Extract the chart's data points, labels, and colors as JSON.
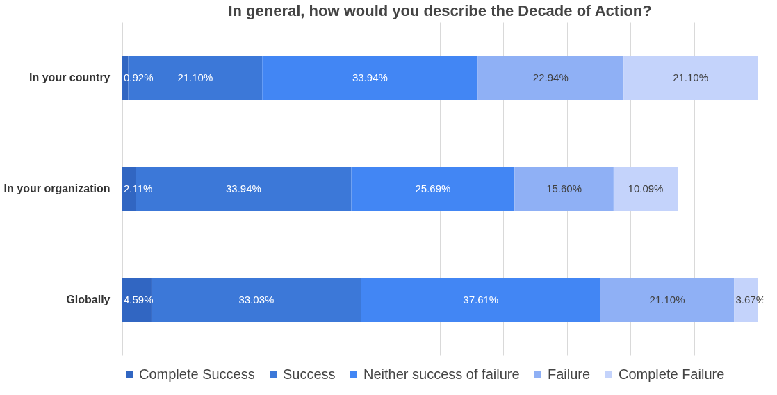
{
  "chart_data": {
    "type": "bar",
    "orientation": "horizontal",
    "stacked": true,
    "title": "In general, how would you describe the Decade of Action?",
    "categories": [
      "In your country",
      "In your organization",
      "Globally"
    ],
    "series": [
      {
        "name": "Complete Success",
        "color": "#3166c2",
        "values": [
          0.92,
          2.11,
          4.59
        ],
        "value_labels": [
          "0.92%",
          "2.11%",
          "4.59%"
        ]
      },
      {
        "name": "Success",
        "color": "#3c78d8",
        "values": [
          21.1,
          33.94,
          33.03
        ],
        "value_labels": [
          "21.10%",
          "33.94%",
          "33.03%"
        ]
      },
      {
        "name": "Neither success of failure",
        "color": "#4286f4",
        "values": [
          33.94,
          25.69,
          37.61
        ],
        "value_labels": [
          "33.94%",
          "25.69%",
          "37.61%"
        ]
      },
      {
        "name": "Failure",
        "color": "#8fb0f5",
        "values": [
          22.94,
          15.6,
          21.1
        ],
        "value_labels": [
          "22.94%",
          "15.60%",
          "21.10%"
        ]
      },
      {
        "name": "Complete Failure",
        "color": "#c4d3fb",
        "values": [
          21.1,
          10.09,
          3.67
        ],
        "value_labels": [
          "21.10%",
          "10.09%",
          "3.67%"
        ]
      }
    ],
    "xlim": [
      0,
      100
    ],
    "xticks": [
      {
        "value": 0,
        "label": null
      },
      {
        "value": 10,
        "label": null
      },
      {
        "value": 20,
        "label": null
      },
      {
        "value": 30,
        "label": null
      },
      {
        "value": 40,
        "label": null
      },
      {
        "value": 50,
        "label": null
      },
      {
        "value": 60,
        "label": null
      },
      {
        "value": 70,
        "label": null
      },
      {
        "value": 80,
        "label": null
      },
      {
        "value": 90,
        "label": null
      },
      {
        "value": 100,
        "label": null
      }
    ],
    "tick_labels": "y",
    "grid": "x",
    "legend": "bottom"
  }
}
